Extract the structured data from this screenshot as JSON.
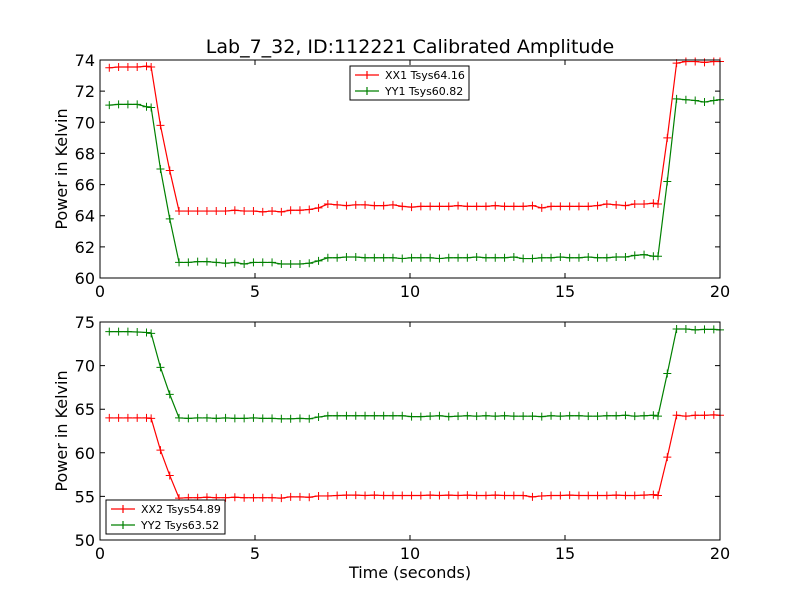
{
  "chart_data": [
    {
      "type": "line",
      "title": "Lab_7_32, ID:112221 Calibrated Amplitude",
      "xlabel": "",
      "ylabel": "Power in Kelvin",
      "xlim": [
        0,
        20
      ],
      "ylim": [
        60,
        74
      ],
      "xticks": [
        0,
        5,
        10,
        15,
        20
      ],
      "yticks": [
        60,
        62,
        64,
        66,
        68,
        70,
        72,
        74
      ],
      "legend_position": "top-center",
      "x": [
        0.3,
        0.6,
        0.9,
        1.2,
        1.5,
        1.65,
        1.95,
        2.25,
        2.55,
        2.85,
        3.15,
        3.45,
        3.75,
        4.05,
        4.35,
        4.65,
        4.95,
        5.25,
        5.55,
        5.85,
        6.15,
        6.45,
        6.75,
        7.05,
        7.35,
        7.65,
        7.95,
        8.25,
        8.55,
        8.85,
        9.15,
        9.45,
        9.75,
        10.05,
        10.35,
        10.65,
        10.95,
        11.25,
        11.55,
        11.85,
        12.15,
        12.45,
        12.75,
        13.05,
        13.35,
        13.65,
        13.95,
        14.25,
        14.55,
        14.85,
        15.15,
        15.45,
        15.75,
        16.05,
        16.35,
        16.65,
        16.95,
        17.25,
        17.55,
        17.85,
        18.0,
        18.3,
        18.6,
        18.9,
        19.2,
        19.5,
        19.8,
        20.0
      ],
      "series": [
        {
          "name": "XX1 Tsys64.16",
          "color": "#ff0000",
          "values": [
            73.5,
            73.55,
            73.55,
            73.55,
            73.6,
            73.55,
            69.8,
            66.9,
            64.3,
            64.3,
            64.3,
            64.3,
            64.3,
            64.3,
            64.35,
            64.3,
            64.3,
            64.25,
            64.3,
            64.25,
            64.35,
            64.35,
            64.4,
            64.5,
            64.75,
            64.7,
            64.65,
            64.7,
            64.7,
            64.65,
            64.65,
            64.7,
            64.6,
            64.55,
            64.6,
            64.6,
            64.6,
            64.6,
            64.65,
            64.6,
            64.6,
            64.6,
            64.65,
            64.6,
            64.6,
            64.6,
            64.65,
            64.5,
            64.6,
            64.6,
            64.6,
            64.6,
            64.6,
            64.65,
            64.75,
            64.7,
            64.65,
            64.75,
            64.75,
            64.8,
            64.75,
            69.0,
            73.8,
            73.9,
            73.9,
            73.85,
            73.9,
            73.9
          ]
        },
        {
          "name": "YY1 Tsys60.82",
          "color": "#008000",
          "values": [
            71.1,
            71.15,
            71.15,
            71.15,
            71.0,
            70.95,
            67.0,
            63.8,
            61.0,
            61.0,
            61.05,
            61.05,
            61.0,
            60.95,
            61.0,
            60.9,
            61.0,
            61.0,
            61.0,
            60.9,
            60.9,
            60.9,
            60.95,
            61.1,
            61.3,
            61.3,
            61.35,
            61.35,
            61.3,
            61.3,
            61.3,
            61.3,
            61.25,
            61.3,
            61.3,
            61.3,
            61.25,
            61.3,
            61.3,
            61.3,
            61.35,
            61.3,
            61.3,
            61.3,
            61.35,
            61.25,
            61.25,
            61.3,
            61.3,
            61.35,
            61.3,
            61.3,
            61.35,
            61.3,
            61.3,
            61.35,
            61.35,
            61.45,
            61.5,
            61.4,
            61.4,
            66.2,
            71.5,
            71.45,
            71.4,
            71.3,
            71.4,
            71.45
          ]
        }
      ]
    },
    {
      "type": "line",
      "title": "",
      "xlabel": "Time (seconds)",
      "ylabel": "Power in Kelvin",
      "xlim": [
        0,
        20
      ],
      "ylim": [
        50,
        75
      ],
      "xticks": [
        0,
        5,
        10,
        15,
        20
      ],
      "yticks": [
        50,
        55,
        60,
        65,
        70,
        75
      ],
      "legend_position": "bottom-left",
      "x": [
        0.3,
        0.6,
        0.9,
        1.2,
        1.5,
        1.65,
        1.95,
        2.25,
        2.55,
        2.85,
        3.15,
        3.45,
        3.75,
        4.05,
        4.35,
        4.65,
        4.95,
        5.25,
        5.55,
        5.85,
        6.15,
        6.45,
        6.75,
        7.05,
        7.35,
        7.65,
        7.95,
        8.25,
        8.55,
        8.85,
        9.15,
        9.45,
        9.75,
        10.05,
        10.35,
        10.65,
        10.95,
        11.25,
        11.55,
        11.85,
        12.15,
        12.45,
        12.75,
        13.05,
        13.35,
        13.65,
        13.95,
        14.25,
        14.55,
        14.85,
        15.15,
        15.45,
        15.75,
        16.05,
        16.35,
        16.65,
        16.95,
        17.25,
        17.55,
        17.85,
        18.0,
        18.3,
        18.6,
        18.9,
        19.2,
        19.5,
        19.8,
        20.0
      ],
      "series": [
        {
          "name": "XX2 Tsys54.89",
          "color": "#ff0000",
          "values": [
            64.0,
            64.0,
            64.0,
            64.0,
            64.0,
            63.95,
            60.3,
            57.4,
            54.8,
            54.85,
            54.85,
            54.9,
            54.85,
            54.85,
            54.9,
            54.85,
            54.85,
            54.85,
            54.85,
            54.8,
            54.95,
            54.95,
            54.9,
            55.05,
            55.05,
            55.1,
            55.15,
            55.15,
            55.1,
            55.15,
            55.1,
            55.1,
            55.1,
            55.1,
            55.1,
            55.15,
            55.1,
            55.15,
            55.1,
            55.15,
            55.1,
            55.1,
            55.15,
            55.1,
            55.1,
            55.1,
            54.95,
            55.05,
            55.1,
            55.1,
            55.15,
            55.1,
            55.1,
            55.1,
            55.1,
            55.15,
            55.1,
            55.1,
            55.15,
            55.2,
            55.1,
            59.5,
            64.3,
            64.2,
            64.3,
            64.3,
            64.35,
            64.3
          ]
        },
        {
          "name": "YY2 Tsys63.52",
          "color": "#008000",
          "values": [
            73.9,
            73.9,
            73.9,
            73.85,
            73.8,
            73.7,
            69.8,
            66.7,
            64.0,
            63.95,
            64.0,
            64.0,
            63.95,
            64.0,
            63.95,
            63.95,
            64.0,
            63.95,
            63.95,
            63.9,
            63.9,
            63.95,
            63.9,
            64.1,
            64.25,
            64.25,
            64.25,
            64.25,
            64.25,
            64.25,
            64.25,
            64.25,
            64.25,
            64.15,
            64.15,
            64.2,
            64.25,
            64.15,
            64.2,
            64.25,
            64.2,
            64.25,
            64.2,
            64.25,
            64.2,
            64.2,
            64.2,
            64.15,
            64.25,
            64.2,
            64.25,
            64.25,
            64.2,
            64.2,
            64.25,
            64.25,
            64.3,
            64.2,
            64.25,
            64.3,
            64.2,
            69.1,
            74.2,
            74.2,
            74.1,
            74.15,
            74.15,
            74.1
          ]
        }
      ]
    }
  ]
}
